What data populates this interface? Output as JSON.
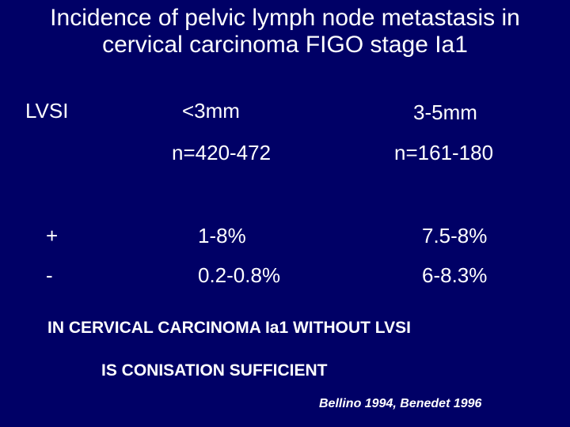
{
  "title": "Incidence of pelvic lymph node metastasis in cervical carcinoma FIGO stage Ia1",
  "table": {
    "header": [
      "LVSI",
      "<3mm",
      "3-5mm"
    ],
    "counts": [
      "n=420-472",
      "n=161-180"
    ],
    "rows": [
      [
        "+",
        "1-8%",
        "7.5-8%"
      ],
      [
        "-",
        "0.2-0.8%",
        "6-8.3%"
      ]
    ]
  },
  "conclusion": [
    "IN CERVICAL CARCINOMA Ia1 WITHOUT LVSI",
    "IS CONISATION SUFFICIENT"
  ],
  "citation": "Bellino 1994, Benedet 1996"
}
